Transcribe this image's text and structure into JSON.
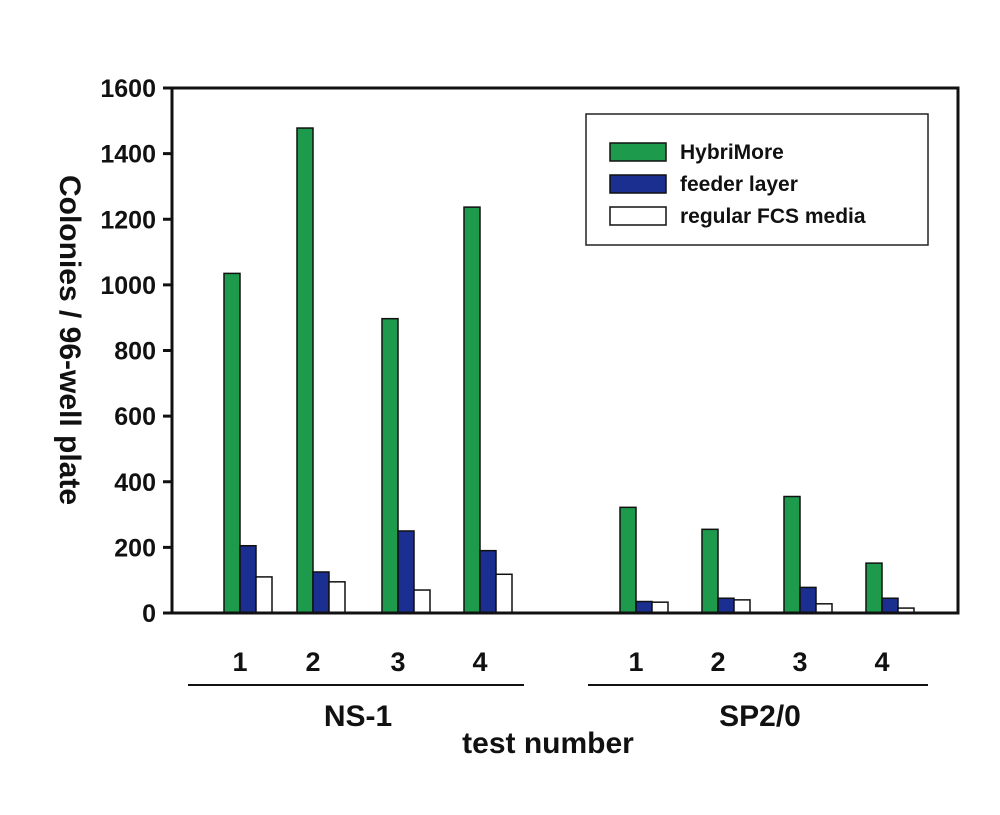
{
  "chart_data": {
    "type": "bar",
    "title": "",
    "xlabel": "test number",
    "ylabel": "Colonies / 96-well plate",
    "ylim": [
      0,
      1600
    ],
    "yticks": [
      "0",
      "200",
      "400",
      "600",
      "800",
      "1000",
      "1200",
      "1400",
      "1600"
    ],
    "legend_position": "top-right",
    "series": [
      {
        "name": "HybriMore",
        "color": "#1e9a4c"
      },
      {
        "name": "feeder layer",
        "color": "#1a2f8f"
      },
      {
        "name": "regular FCS media",
        "color": "#ffffff"
      }
    ],
    "groups": [
      {
        "name": "NS-1",
        "tests": [
          {
            "label": "1",
            "values": [
              1035,
              205,
              110
            ]
          },
          {
            "label": "2",
            "values": [
              1478,
              125,
              95
            ]
          },
          {
            "label": "3",
            "values": [
              897,
              250,
              70
            ]
          },
          {
            "label": "4",
            "values": [
              1237,
              190,
              118
            ]
          }
        ]
      },
      {
        "name": "SP2/0",
        "tests": [
          {
            "label": "1",
            "values": [
              322,
              35,
              33
            ]
          },
          {
            "label": "2",
            "values": [
              255,
              45,
              40
            ]
          },
          {
            "label": "3",
            "values": [
              355,
              78,
              28
            ]
          },
          {
            "label": "4",
            "values": [
              152,
              45,
              15
            ]
          }
        ]
      }
    ]
  }
}
